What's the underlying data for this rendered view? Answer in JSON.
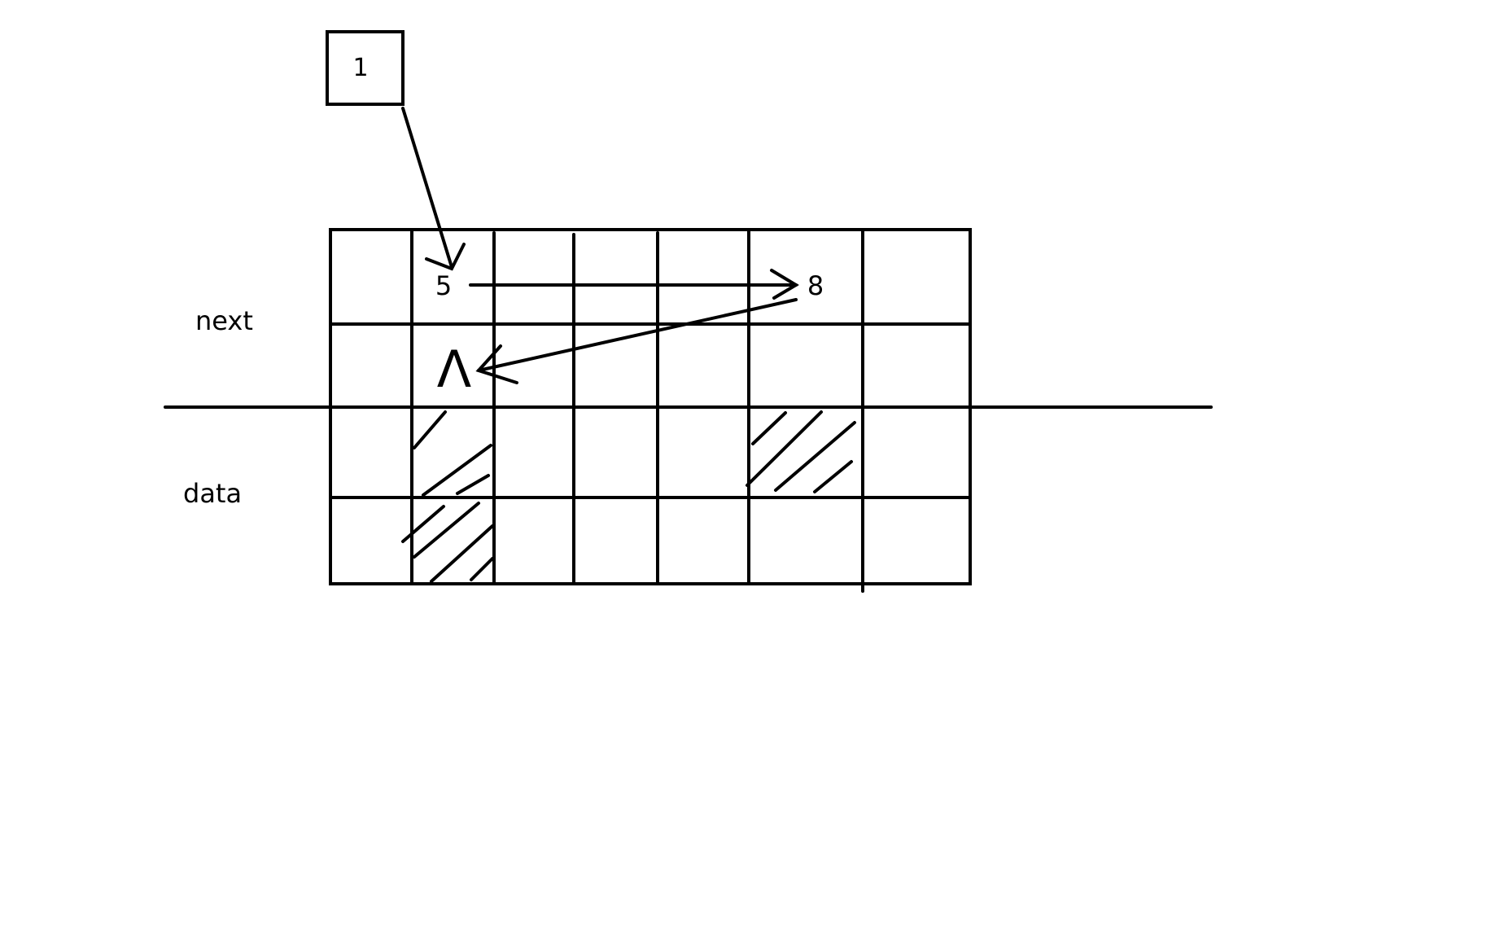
{
  "labels": {
    "pointer_box": "1",
    "cell_5": "5",
    "cell_8": "8",
    "null_marker": "Λ",
    "row_next": "next",
    "row_data": "data"
  },
  "colors": {
    "ink": "#000000",
    "background": "#ffffff"
  }
}
